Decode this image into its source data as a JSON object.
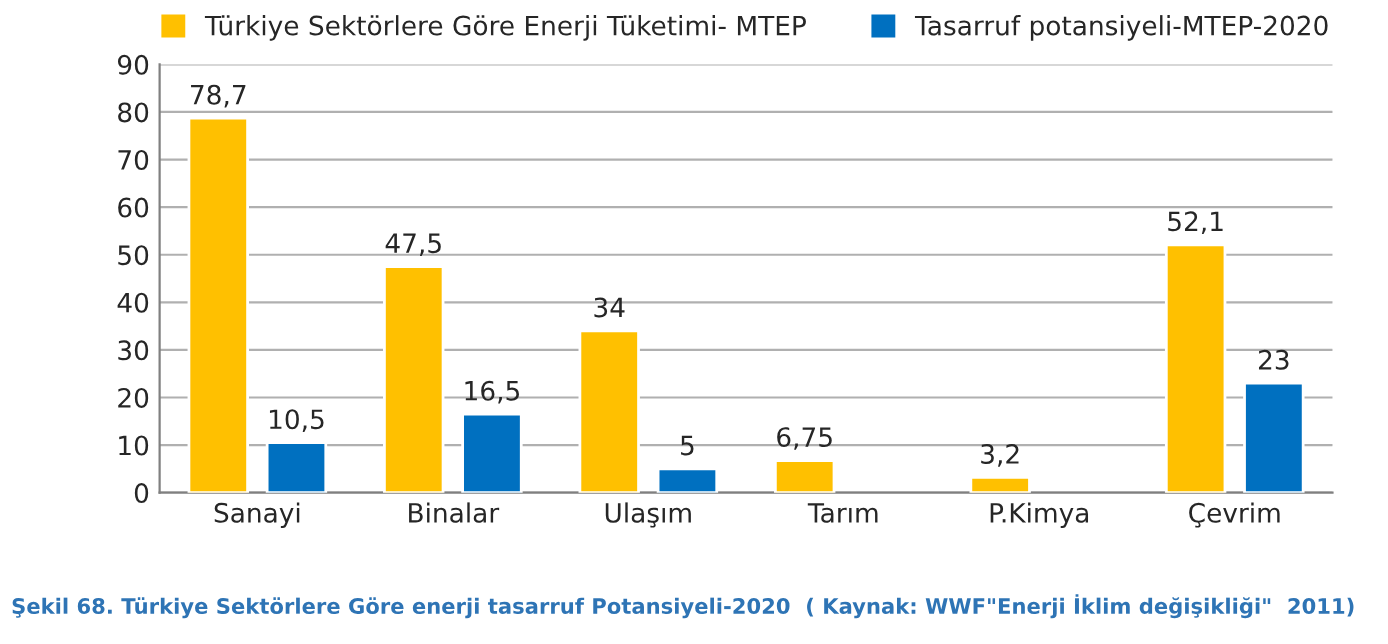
{
  "chart_data": {
    "type": "bar",
    "categories": [
      "Sanayi",
      "Binalar",
      "Ulaşım",
      "Tarım",
      "P.Kimya",
      "Çevrim"
    ],
    "series": [
      {
        "name": "Türkiye Sektörlere Göre Enerji Tüketimi- MTEP",
        "color": "#ffc000",
        "values": [
          78.7,
          47.5,
          34,
          6.75,
          3.2,
          52.1
        ],
        "value_labels": [
          "78,7",
          "47,5",
          "34",
          "6,75",
          "3,2",
          "52,1"
        ]
      },
      {
        "name": "Tasarruf potansiyeli-MTEP-2020",
        "color": "#0070c0",
        "values": [
          10.5,
          16.5,
          5,
          null,
          null,
          23
        ],
        "value_labels": [
          "10,5",
          "16,5",
          "5",
          null,
          null,
          "23"
        ]
      }
    ],
    "ylim": [
      0,
      90
    ],
    "yticks": [
      0,
      10,
      20,
      30,
      40,
      50,
      60,
      70,
      80,
      90
    ],
    "grid": "y",
    "legend": "top",
    "annotations": [
      "Şekil 68. Türkiye Sektörlere Göre enerji tasarruf Potansiyeli-2020  ( Kaynak: WWF\"Enerji İklim değişikliği\"  2011)"
    ]
  }
}
